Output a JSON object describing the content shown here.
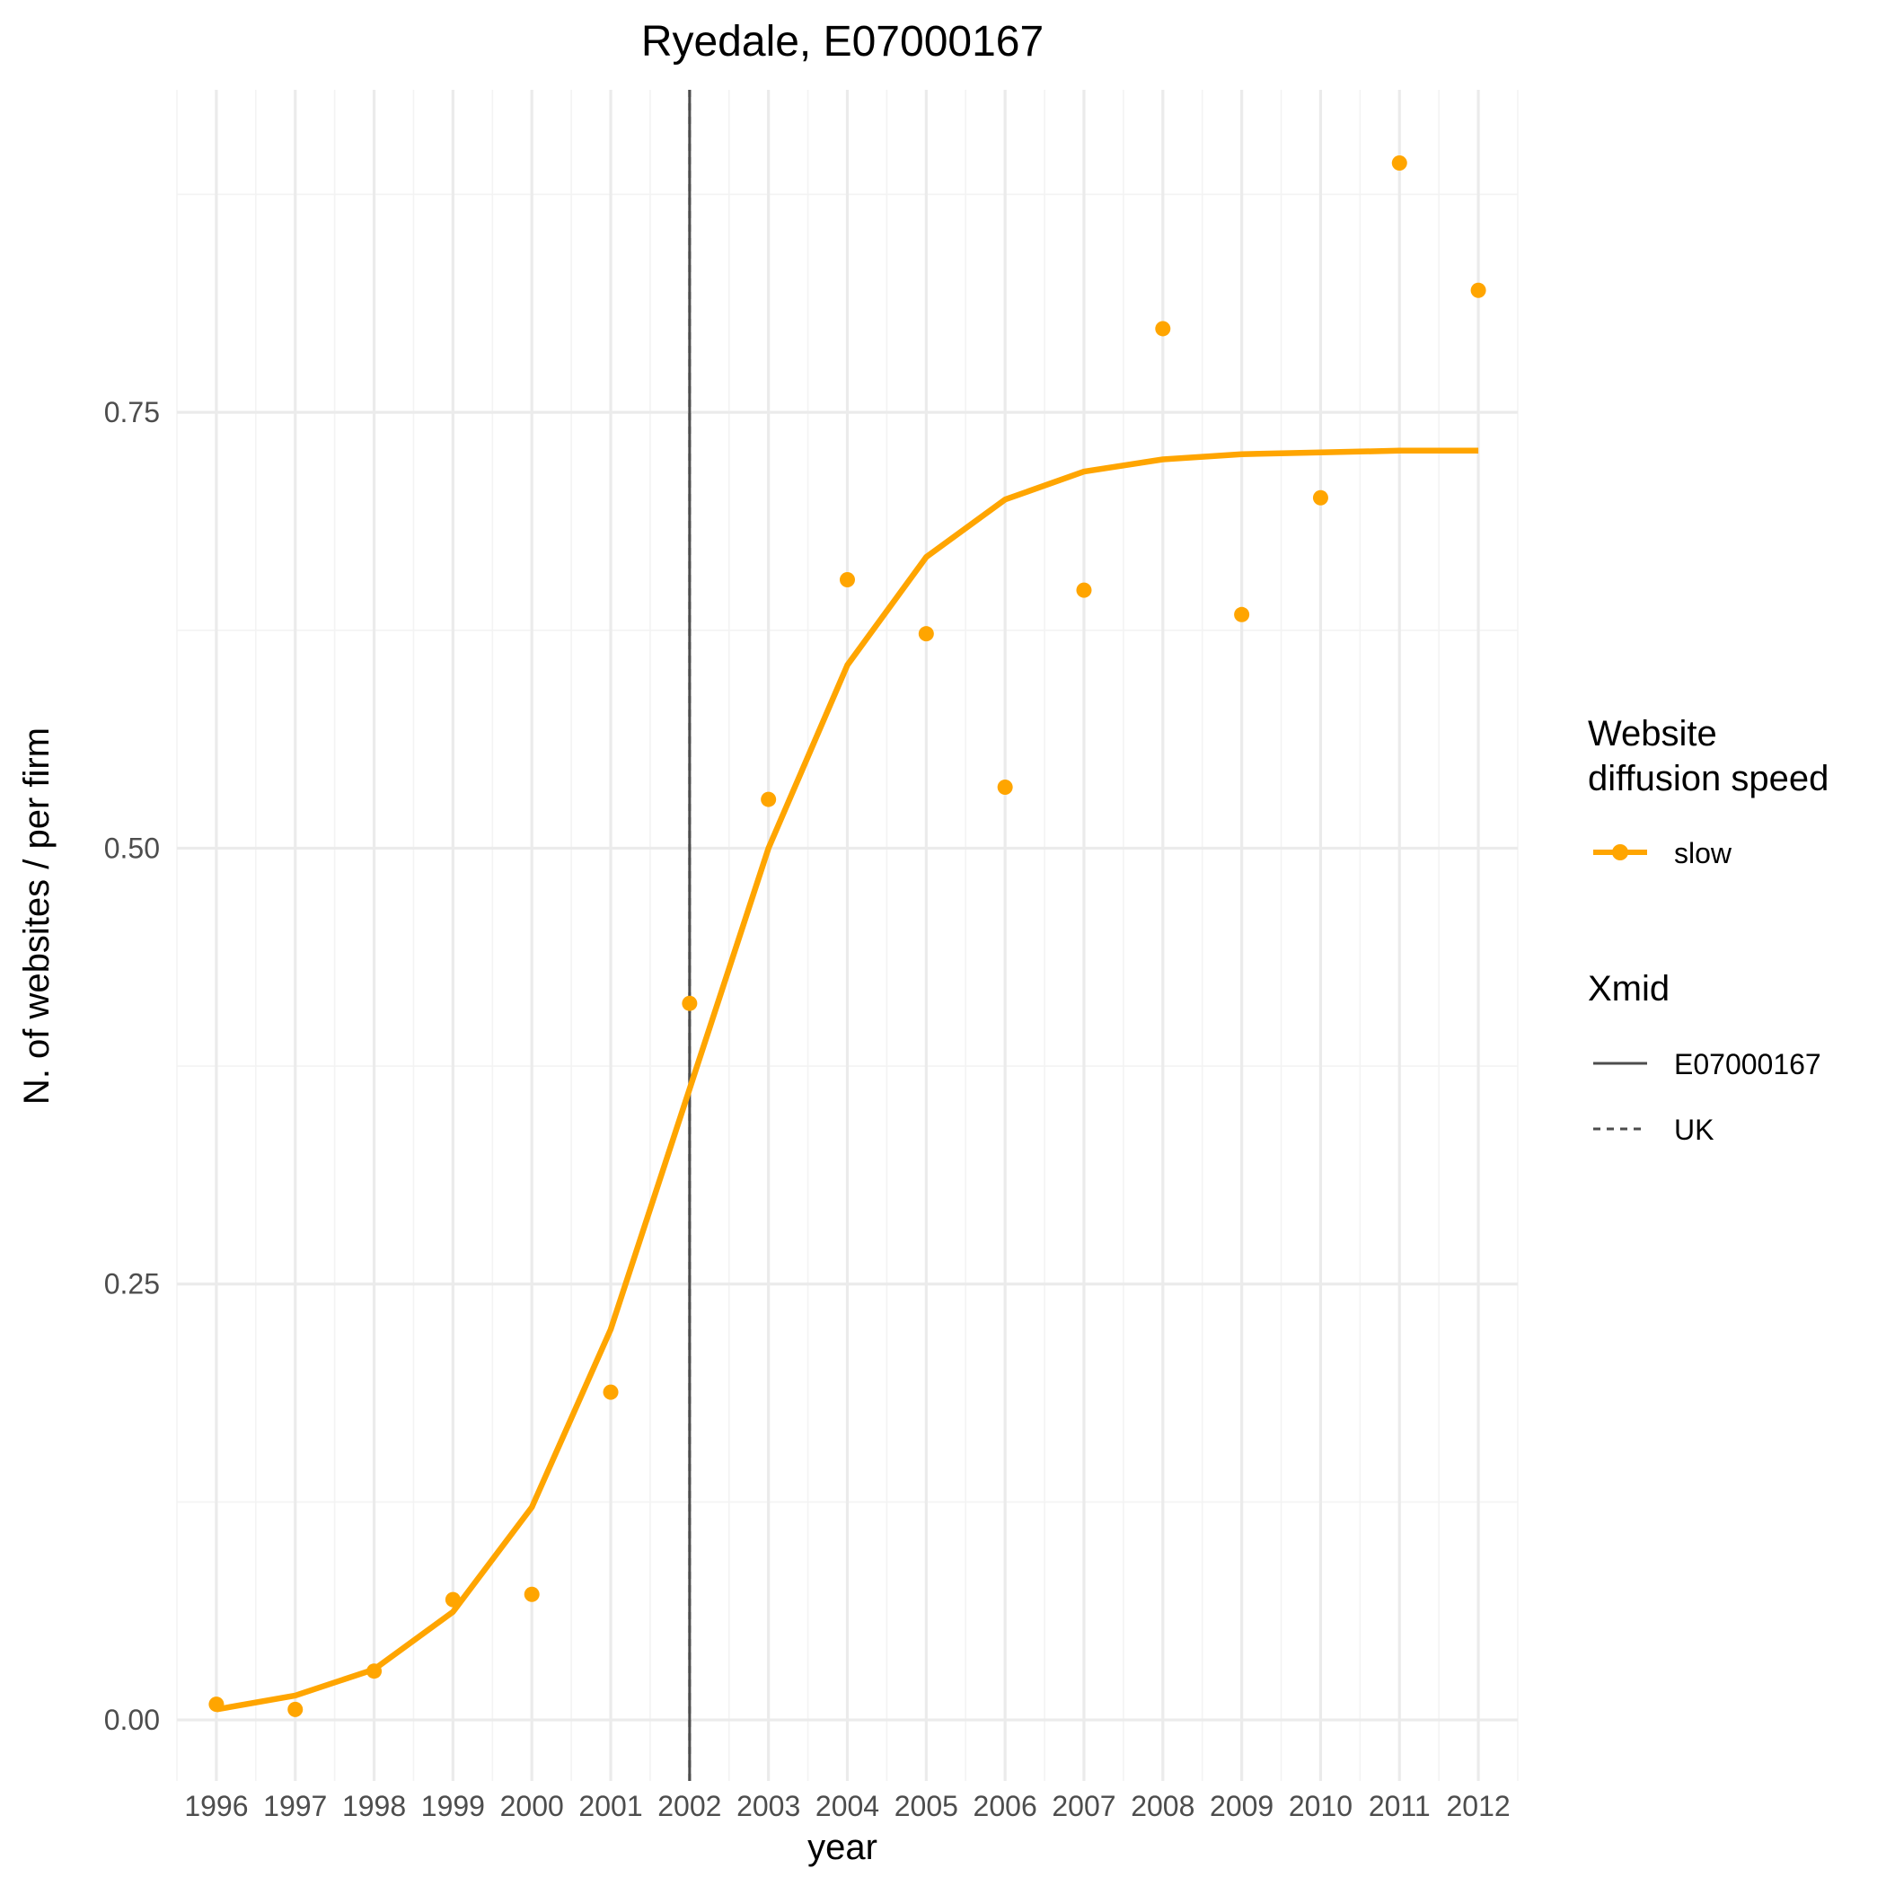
{
  "chart_data": {
    "type": "line",
    "title": "Ryedale, E07000167",
    "xlabel": "year",
    "ylabel": "N. of websites / per firm",
    "xlim": [
      1995.5,
      2012.5
    ],
    "ylim": [
      -0.035,
      0.935
    ],
    "x_ticks": [
      1996,
      1997,
      1998,
      1999,
      2000,
      2001,
      2002,
      2003,
      2004,
      2005,
      2006,
      2007,
      2008,
      2009,
      2010,
      2011,
      2012
    ],
    "x_tick_labels": [
      "1996",
      "1997",
      "1998",
      "1999",
      "2000",
      "2001",
      "2002",
      "2003",
      "2004",
      "2005",
      "2006",
      "2007",
      "2008",
      "2009",
      "2010",
      "2011",
      "2012"
    ],
    "y_ticks": [
      0.0,
      0.25,
      0.5,
      0.75
    ],
    "y_tick_labels": [
      "0.00",
      "0.25",
      "0.50",
      "0.75"
    ],
    "y_minor_ticks": [
      0.125,
      0.375,
      0.625,
      0.875
    ],
    "grid": true,
    "legend_position": "right",
    "series": [
      {
        "name": "slow",
        "kind": "fitted-line",
        "color": "#FFA500",
        "x": [
          1996,
          1997,
          1998,
          1999,
          2000,
          2001,
          2002,
          2003,
          2004,
          2005,
          2006,
          2007,
          2008,
          2009,
          2010,
          2011,
          2012
        ],
        "y": [
          0.006,
          0.014,
          0.029,
          0.062,
          0.122,
          0.224,
          0.362,
          0.5,
          0.605,
          0.667,
          0.7,
          0.716,
          0.723,
          0.726,
          0.727,
          0.728,
          0.728
        ]
      },
      {
        "name": "slow",
        "kind": "points",
        "color": "#FFA500",
        "x": [
          1996,
          1997,
          1998,
          1999,
          2000,
          2001,
          2002,
          2003,
          2004,
          2005,
          2006,
          2007,
          2008,
          2009,
          2010,
          2011,
          2012
        ],
        "y": [
          0.009,
          0.006,
          0.028,
          0.069,
          0.072,
          0.188,
          0.411,
          0.528,
          0.654,
          0.623,
          0.535,
          0.648,
          0.798,
          0.634,
          0.701,
          0.893,
          0.82
        ]
      }
    ],
    "vlines": [
      {
        "x": 2002,
        "label": "E07000167",
        "linetype": "solid",
        "color": "#4d4d4d"
      },
      {
        "x": 2002,
        "label": "UK",
        "linetype": "dashed",
        "color": "#4d4d4d"
      }
    ],
    "legend": {
      "speed_title_line1": "Website",
      "speed_title_line2": "diffusion speed",
      "speed_items": [
        {
          "label": "slow",
          "color": "#FFA500"
        }
      ],
      "xmid_title": "Xmid",
      "xmid_items": [
        {
          "label": "E07000167",
          "linetype": "solid"
        },
        {
          "label": "UK",
          "linetype": "dashed"
        }
      ]
    }
  }
}
